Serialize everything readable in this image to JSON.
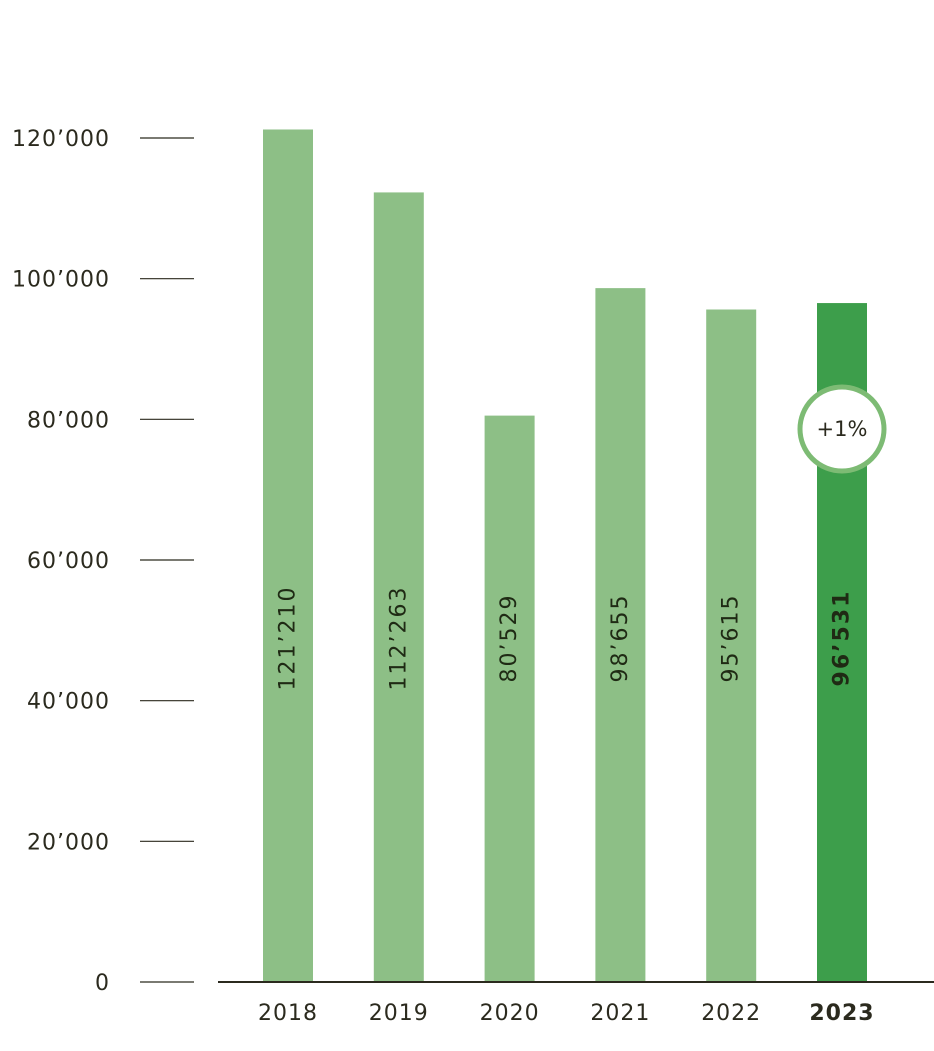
{
  "chart_data": {
    "type": "bar",
    "categories": [
      "2018",
      "2019",
      "2020",
      "2021",
      "2022",
      "2023"
    ],
    "values": [
      121210,
      112263,
      80529,
      98655,
      95615,
      96531
    ],
    "value_labels": [
      "121’210",
      "112’263",
      "80’529",
      "98’655",
      "95’615",
      "96’531"
    ],
    "highlight_index": 5,
    "yticks": [
      0,
      20000,
      40000,
      60000,
      80000,
      100000,
      120000
    ],
    "ytick_labels": [
      "0",
      "20’000",
      "40’000",
      "60’000",
      "80’000",
      "100’000",
      "120’000"
    ],
    "ylim": [
      0,
      120000
    ],
    "title": "",
    "xlabel": "",
    "ylabel": "",
    "grid": false,
    "annotation": {
      "text": "+1%",
      "category": "2023"
    },
    "colors": {
      "bar": "#8dbf86",
      "highlight": "#3d9e4b",
      "axis": "#2b2a1e",
      "badge_border": "#7dbb74"
    }
  }
}
